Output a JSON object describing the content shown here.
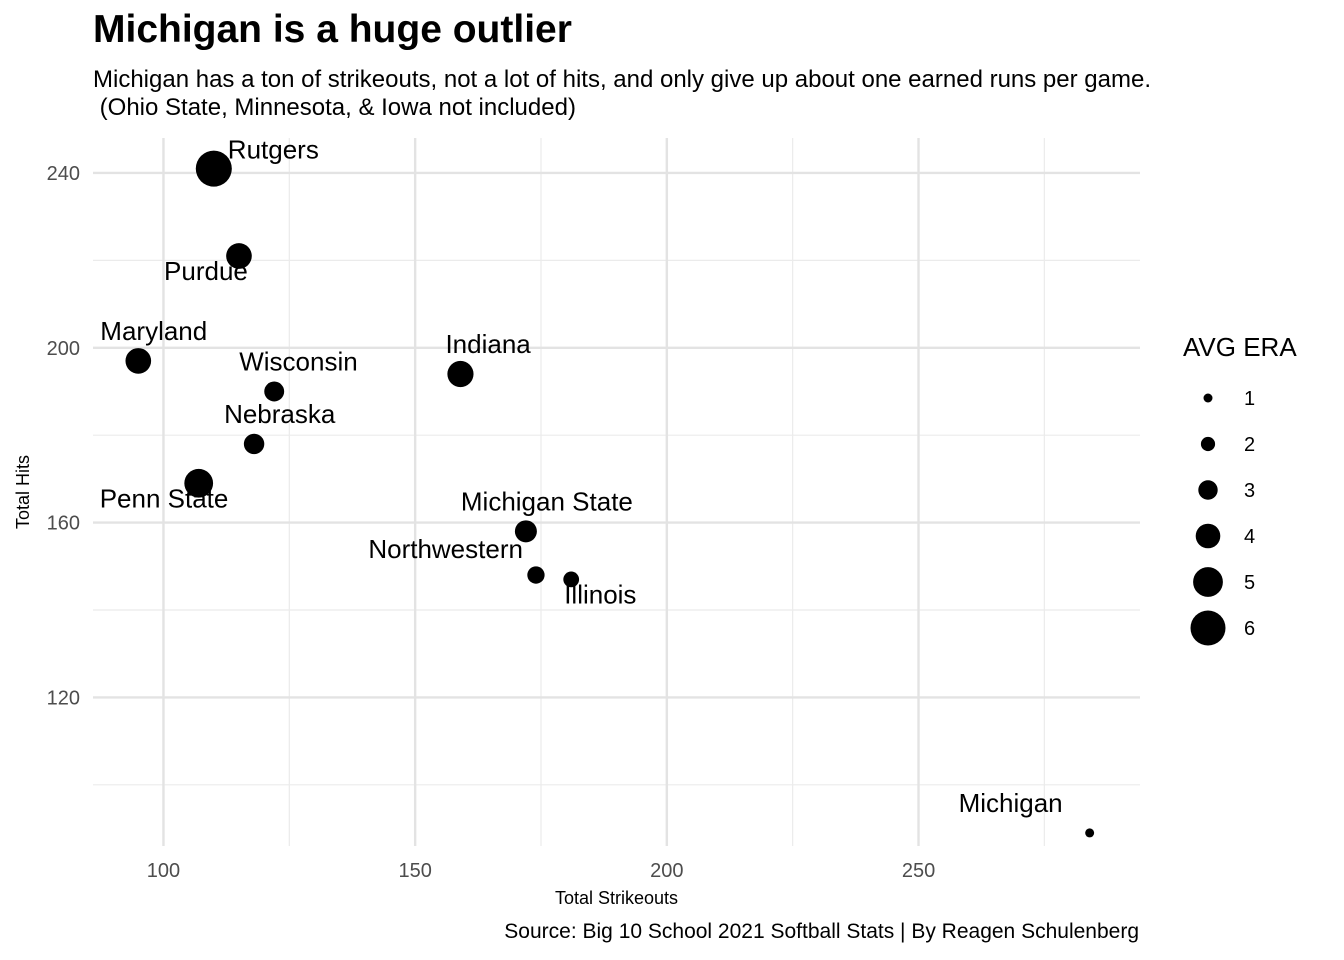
{
  "title": "Michigan is a huge outlier",
  "subtitle": "Michigan has a ton of strikeouts, not a lot of hits, and only give up about one earned runs per game.\n (Ohio State, Minnesota, & Iowa not included)",
  "caption": "Source: Big 10 School 2021 Softball Stats | By Reagen Schulenberg",
  "chart_data": {
    "type": "scatter",
    "title": "Michigan is a huge outlier",
    "xlabel": "Total Strikeouts",
    "ylabel": "Total Hits",
    "xlim": [
      86,
      294
    ],
    "ylim": [
      86,
      248
    ],
    "x_ticks": [
      100,
      150,
      200,
      250
    ],
    "y_ticks": [
      120,
      160,
      200,
      240
    ],
    "grid": true,
    "legend_title": "AVG ERA",
    "legend_placement": "right",
    "size_legend": [
      1,
      2,
      3,
      4,
      5,
      6
    ],
    "points": [
      {
        "label": "Rutgers",
        "x": 110,
        "y": 241,
        "size": 6.2,
        "anchor": "start",
        "dx": 14,
        "dy": -10
      },
      {
        "label": "Purdue",
        "x": 115,
        "y": 221,
        "size": 4.2,
        "anchor": "middle",
        "dx": -33,
        "dy": 24
      },
      {
        "label": "Maryland",
        "x": 95,
        "y": 197,
        "size": 4.2,
        "anchor": "start",
        "dx": -38,
        "dy": -21
      },
      {
        "label": "Wisconsin",
        "x": 122,
        "y": 190,
        "size": 3.1,
        "anchor": "start",
        "dx": -35,
        "dy": -21
      },
      {
        "label": "Indiana",
        "x": 159,
        "y": 194,
        "size": 4.3,
        "anchor": "start",
        "dx": -15,
        "dy": -21
      },
      {
        "label": "Nebraska",
        "x": 118,
        "y": 178,
        "size": 3.2,
        "anchor": "start",
        "dx": -30,
        "dy": -21
      },
      {
        "label": "Penn State",
        "x": 107,
        "y": 169,
        "size": 4.8,
        "anchor": "start",
        "dx": -99,
        "dy": 24
      },
      {
        "label": "Michigan State",
        "x": 172,
        "y": 158,
        "size": 3.5,
        "anchor": "start",
        "dx": -65,
        "dy": -21
      },
      {
        "label": "Northwestern",
        "x": 174,
        "y": 148,
        "size": 2.6,
        "anchor": "end",
        "dx": -13,
        "dy": -17
      },
      {
        "label": "Illinois",
        "x": 181,
        "y": 147,
        "size": 2.3,
        "anchor": "start",
        "dx": -7,
        "dy": 24
      },
      {
        "label": "Michigan",
        "x": 284,
        "y": 89,
        "size": 1.0,
        "anchor": "end",
        "dx": -27,
        "dy": -21
      }
    ]
  }
}
